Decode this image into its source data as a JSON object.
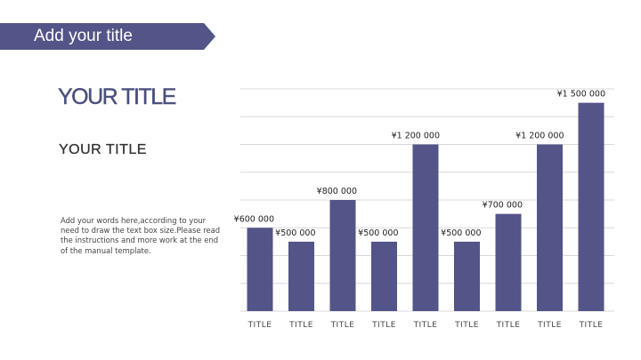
{
  "header": {
    "title": "Add your title"
  },
  "left_panel": {
    "title": "YOUR TITLE",
    "subtitle": "YOUR TITLE",
    "body": "Add your words here,according to your need to draw the text box size.Please read the instructions and more work at the end of the manual template."
  },
  "colors": {
    "accent": "#535487",
    "grid": "#d9d9d9"
  },
  "chart_data": {
    "type": "bar",
    "categories": [
      "TITLE",
      "TITLE",
      "TITLE",
      "TITLE",
      "TITLE",
      "TITLE",
      "TITLE",
      "TITLE",
      "TITLE"
    ],
    "values": [
      600000,
      500000,
      800000,
      500000,
      1200000,
      500000,
      700000,
      1200000,
      1500000
    ],
    "value_labels": [
      "¥600 000",
      "¥500 000",
      "¥800 000",
      "¥500 000",
      "¥1 200 000",
      "¥500 000",
      "¥700 000",
      "¥1 200 000",
      "¥1 500 000"
    ],
    "ylim": [
      0,
      1600000
    ],
    "grid": true,
    "legend": "none"
  }
}
